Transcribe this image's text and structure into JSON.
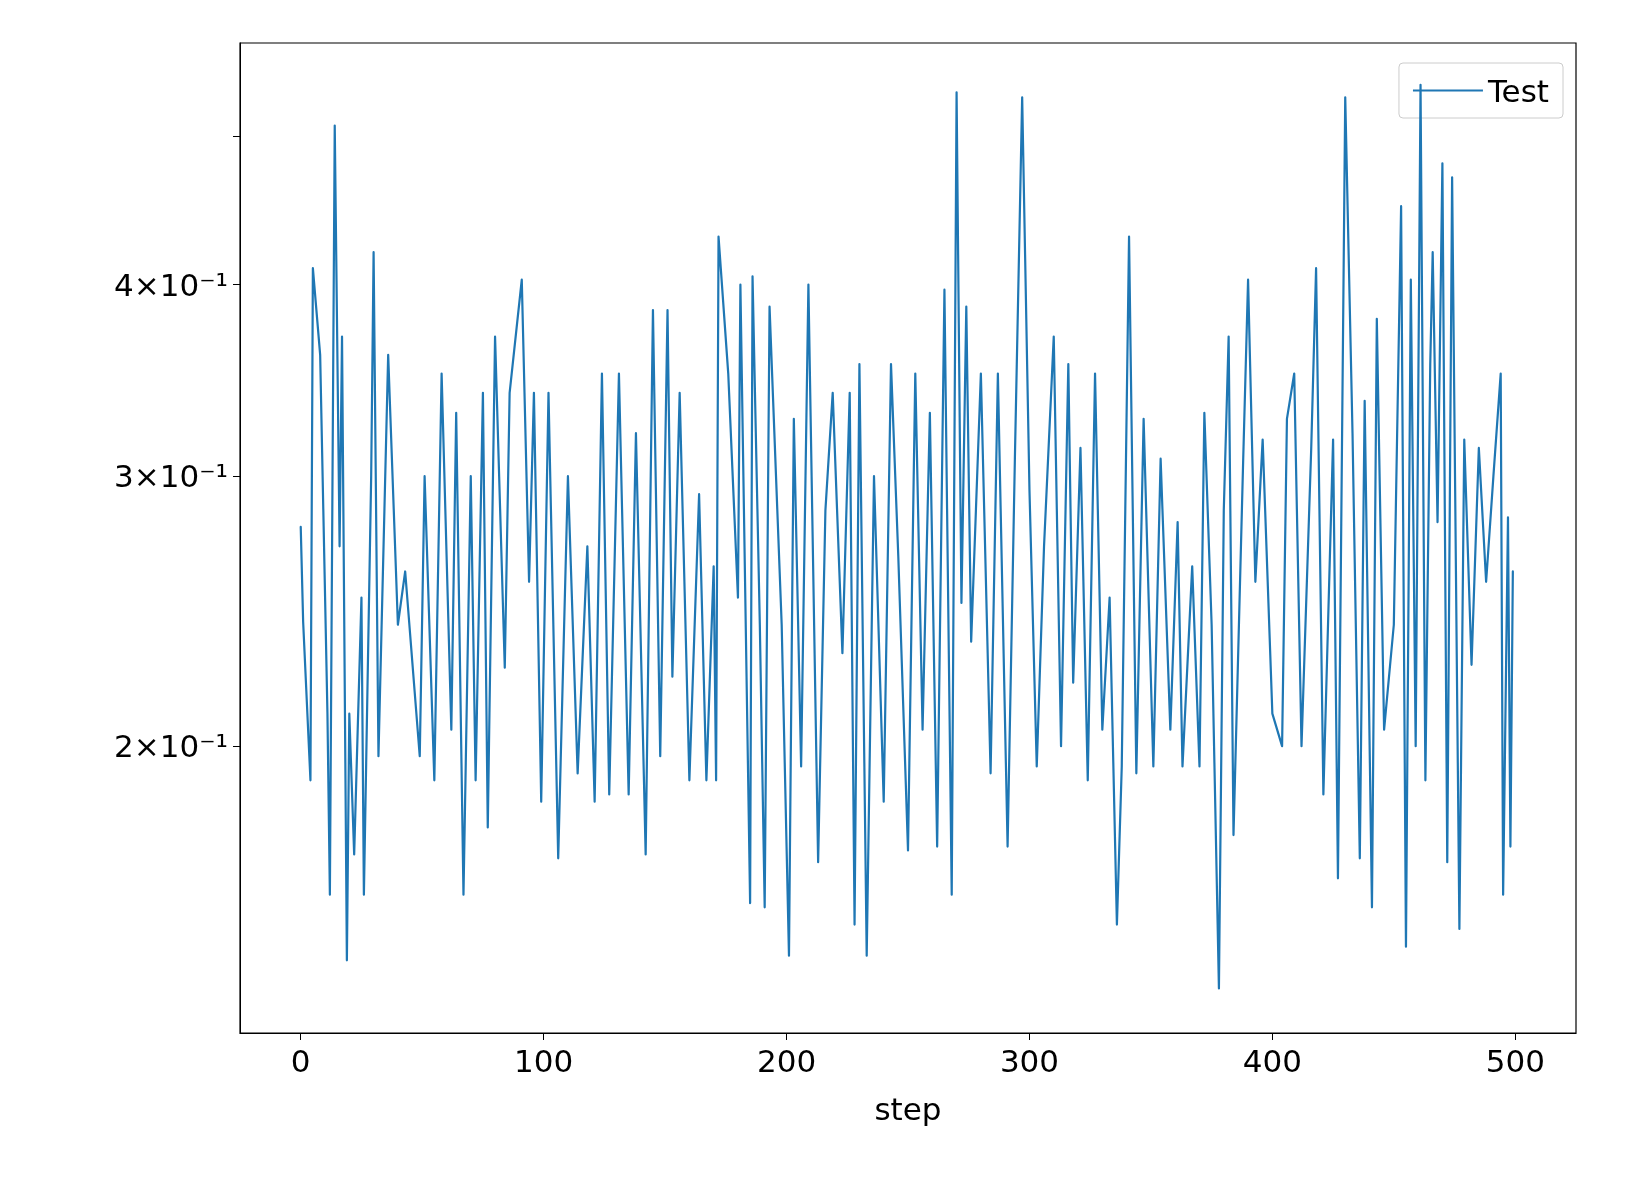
{
  "chart_data": {
    "type": "line",
    "xlabel": "step",
    "log": "y",
    "grid": false,
    "legend": "top right",
    "marker": "none",
    "line_style": "solid",
    "xlim": [
      -25,
      525
    ],
    "xticks": [
      0,
      100,
      200,
      300,
      400,
      500
    ],
    "ylim": [
      0.13,
      0.575
    ],
    "yticks": [
      {
        "value": 0.2,
        "label": "2×10⁻¹"
      },
      {
        "value": 0.3,
        "label": "3×10⁻¹"
      },
      {
        "value": 0.4,
        "label": "4×10⁻¹"
      },
      {
        "value": 0.5,
        "label": null
      }
    ],
    "x": [
      0,
      1,
      4,
      5,
      8,
      11,
      12,
      14,
      16,
      17,
      19,
      20,
      22,
      25,
      26,
      29,
      30,
      32,
      36,
      40,
      43,
      49,
      51,
      55,
      58,
      62,
      64,
      67,
      70,
      72,
      75,
      77,
      80,
      84,
      86,
      91,
      94,
      96,
      99,
      102,
      106,
      110,
      114,
      118,
      121,
      124,
      127,
      131,
      135,
      138,
      142,
      145,
      148,
      151,
      153,
      156,
      160,
      164,
      167,
      170,
      171,
      172,
      176,
      180,
      181,
      185,
      186,
      189,
      191,
      193,
      198,
      201,
      203,
      206,
      209,
      213,
      216,
      219,
      223,
      226,
      228,
      230,
      233,
      236,
      240,
      243,
      246,
      250,
      253,
      256,
      259,
      262,
      265,
      268,
      270,
      272,
      274,
      276,
      280,
      284,
      287,
      291,
      294,
      297,
      300,
      303,
      306,
      310,
      313,
      316,
      318,
      321,
      324,
      327,
      330,
      333,
      336,
      338,
      341,
      344,
      347,
      351,
      354,
      358,
      361,
      363,
      367,
      370,
      372,
      375,
      378,
      380,
      382,
      384,
      388,
      390,
      393,
      396,
      400,
      404,
      406,
      409,
      412,
      416,
      418,
      421,
      425,
      427,
      430,
      433,
      436,
      438,
      441,
      443,
      446,
      450,
      453,
      455,
      457,
      459,
      461,
      463,
      465,
      466,
      468,
      470,
      472,
      474,
      477,
      479,
      482,
      485,
      488,
      491,
      494,
      495,
      497,
      498,
      499
    ],
    "series": [
      {
        "name": "Test",
        "color": "#1f77b4",
        "values": [
          0.278,
          0.241,
          0.19,
          0.41,
          0.36,
          0.21,
          0.16,
          0.508,
          0.27,
          0.37,
          0.145,
          0.21,
          0.17,
          0.25,
          0.16,
          0.3,
          0.42,
          0.197,
          0.36,
          0.24,
          0.26,
          0.197,
          0.3,
          0.19,
          0.35,
          0.205,
          0.33,
          0.16,
          0.3,
          0.19,
          0.34,
          0.177,
          0.37,
          0.225,
          0.34,
          0.403,
          0.256,
          0.34,
          0.184,
          0.34,
          0.169,
          0.3,
          0.192,
          0.27,
          0.184,
          0.35,
          0.186,
          0.35,
          0.186,
          0.32,
          0.17,
          0.385,
          0.197,
          0.385,
          0.222,
          0.34,
          0.19,
          0.292,
          0.19,
          0.262,
          0.19,
          0.43,
          0.35,
          0.25,
          0.4,
          0.158,
          0.405,
          0.24,
          0.157,
          0.387,
          0.24,
          0.146,
          0.327,
          0.194,
          0.4,
          0.168,
          0.285,
          0.34,
          0.23,
          0.34,
          0.153,
          0.355,
          0.146,
          0.3,
          0.184,
          0.355,
          0.266,
          0.171,
          0.35,
          0.205,
          0.33,
          0.172,
          0.397,
          0.16,
          0.534,
          0.248,
          0.387,
          0.234,
          0.35,
          0.192,
          0.35,
          0.172,
          0.308,
          0.53,
          0.294,
          0.194,
          0.27,
          0.37,
          0.2,
          0.355,
          0.22,
          0.313,
          0.19,
          0.35,
          0.205,
          0.25,
          0.153,
          0.194,
          0.43,
          0.192,
          0.327,
          0.194,
          0.308,
          0.205,
          0.28,
          0.194,
          0.262,
          0.194,
          0.33,
          0.24,
          0.139,
          0.285,
          0.37,
          0.175,
          0.308,
          0.403,
          0.256,
          0.317,
          0.21,
          0.2,
          0.327,
          0.35,
          0.2,
          0.313,
          0.41,
          0.186,
          0.317,
          0.164,
          0.53,
          0.32,
          0.169,
          0.336,
          0.157,
          0.38,
          0.205,
          0.24,
          0.45,
          0.148,
          0.403,
          0.2,
          0.54,
          0.19,
          0.355,
          0.42,
          0.28,
          0.48,
          0.168,
          0.47,
          0.152,
          0.317,
          0.226,
          0.313,
          0.256,
          0.3,
          0.35,
          0.16,
          0.282,
          0.172,
          0.26
        ]
      }
    ]
  }
}
